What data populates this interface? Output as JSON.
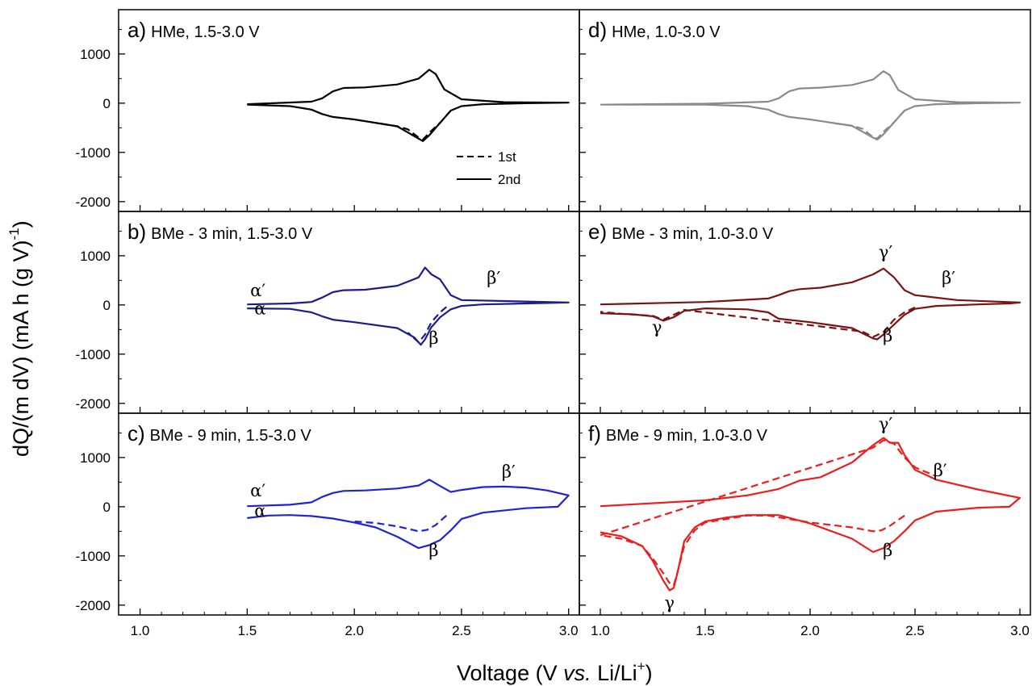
{
  "figure": {
    "xlabel_parts": [
      "Voltage (V ",
      "vs.",
      " Li/Li",
      "+",
      ")"
    ],
    "ylabel_parts": [
      "dQ/(m dV) (mA h (g V)",
      "-1",
      ")"
    ],
    "yticks": [
      "1000",
      "0",
      "-1000",
      "-2000"
    ],
    "xticks": [
      "1.0",
      "1.5",
      "2.0",
      "2.5",
      "3.0"
    ],
    "legend": {
      "first": "1st",
      "second": "2nd"
    }
  },
  "panels": [
    {
      "letter": "a)",
      "label": "HMe, 1.5-3.0 V"
    },
    {
      "letter": "b)",
      "label": "BMe - 3 min, 1.5-3.0 V"
    },
    {
      "letter": "c)",
      "label": "BMe - 9 min, 1.5-3.0 V"
    },
    {
      "letter": "d)",
      "label": "HMe, 1.0-3.0 V"
    },
    {
      "letter": "e)",
      "label": "BMe - 3 min, 1.0-3.0 V"
    },
    {
      "letter": "f)",
      "label": "BMe - 9 min, 1.0-3.0 V"
    }
  ],
  "chart_data": [
    {
      "type": "line",
      "panel": "a",
      "title": "HMe, 1.5-3.0 V",
      "color": "#000000",
      "xlim": [
        0.9,
        3.05
      ],
      "ylim": [
        -2200,
        1900
      ],
      "series": [
        {
          "name": "2nd",
          "style": "solid",
          "x": [
            1.5,
            1.8,
            1.85,
            1.9,
            1.95,
            2.05,
            2.2,
            2.3,
            2.35,
            2.38,
            2.42,
            2.5,
            2.7,
            3.0,
            2.8,
            2.6,
            2.5,
            2.45,
            2.4,
            2.35,
            2.32,
            2.3,
            2.2,
            2.0,
            1.9,
            1.85,
            1.8,
            1.7,
            1.5
          ],
          "y": [
            -20,
            30,
            100,
            240,
            310,
            320,
            380,
            500,
            680,
            590,
            280,
            80,
            20,
            10,
            0,
            -20,
            -60,
            -150,
            -400,
            -650,
            -770,
            -720,
            -470,
            -330,
            -280,
            -220,
            -130,
            -60,
            -30
          ]
        },
        {
          "name": "1st",
          "style": "dashed",
          "x": [
            2.45,
            2.4,
            2.35,
            2.32,
            2.3,
            2.25,
            2.2,
            2.1
          ],
          "y": [
            -150,
            -400,
            -600,
            -740,
            -700,
            -530,
            -470,
            -400
          ]
        }
      ]
    },
    {
      "type": "line",
      "panel": "b",
      "title": "BMe - 3 min, 1.5-3.0 V",
      "color": "#1c1c8c",
      "xlim": [
        0.9,
        3.05
      ],
      "ylim": [
        -2200,
        1900
      ],
      "annotations": [
        {
          "text": "α′",
          "x": 1.55,
          "y": 180
        },
        {
          "text": "α",
          "x": 1.56,
          "y": -190
        },
        {
          "text": "β′",
          "x": 2.65,
          "y": 430
        },
        {
          "text": "β",
          "x": 2.37,
          "y": -790
        }
      ],
      "series": [
        {
          "name": "2nd",
          "style": "solid",
          "x": [
            1.5,
            1.7,
            1.8,
            1.85,
            1.9,
            1.95,
            2.05,
            2.2,
            2.3,
            2.33,
            2.36,
            2.4,
            2.45,
            2.5,
            2.7,
            3.0,
            2.8,
            2.6,
            2.5,
            2.45,
            2.4,
            2.36,
            2.33,
            2.31,
            2.28,
            2.2,
            2.0,
            1.9,
            1.85,
            1.8,
            1.7,
            1.5
          ],
          "y": [
            10,
            30,
            60,
            150,
            260,
            300,
            310,
            390,
            560,
            760,
            620,
            520,
            200,
            100,
            80,
            50,
            30,
            10,
            -20,
            -90,
            -250,
            -450,
            -700,
            -810,
            -660,
            -470,
            -350,
            -300,
            -230,
            -150,
            -80,
            -70
          ]
        },
        {
          "name": "1st",
          "style": "dashed",
          "x": [
            2.43,
            2.4,
            2.36,
            2.33,
            2.3,
            2.25
          ],
          "y": [
            -40,
            -150,
            -350,
            -600,
            -760,
            -560
          ]
        }
      ]
    },
    {
      "type": "line",
      "panel": "c",
      "title": "BMe - 9 min, 1.5-3.0 V",
      "color": "#1f23d6",
      "xlim": [
        0.9,
        3.05
      ],
      "ylim": [
        -2200,
        1900
      ],
      "annotations": [
        {
          "text": "α′",
          "x": 1.55,
          "y": 210
        },
        {
          "text": "α",
          "x": 1.56,
          "y": -200
        },
        {
          "text": "β′",
          "x": 2.72,
          "y": 600
        },
        {
          "text": "β",
          "x": 2.37,
          "y": -1000
        }
      ],
      "series": [
        {
          "name": "2nd",
          "style": "solid",
          "x": [
            1.5,
            1.7,
            1.8,
            1.85,
            1.9,
            1.95,
            2.05,
            2.2,
            2.3,
            2.35,
            2.4,
            2.45,
            2.5,
            2.6,
            2.7,
            2.8,
            2.9,
            3.0,
            2.95,
            2.8,
            2.6,
            2.5,
            2.45,
            2.4,
            2.35,
            2.3,
            2.2,
            2.1,
            2.0,
            1.9,
            1.8,
            1.7,
            1.6,
            1.5
          ],
          "y": [
            10,
            40,
            90,
            200,
            280,
            320,
            330,
            370,
            430,
            550,
            420,
            300,
            340,
            400,
            410,
            390,
            330,
            230,
            0,
            -30,
            -120,
            -250,
            -480,
            -680,
            -780,
            -840,
            -610,
            -420,
            -320,
            -240,
            -190,
            -170,
            -180,
            -230
          ]
        },
        {
          "name": "1st",
          "style": "dashed",
          "x": [
            2.43,
            2.38,
            2.34,
            2.3,
            2.2,
            2.1,
            2.0
          ],
          "y": [
            -180,
            -370,
            -470,
            -500,
            -400,
            -330,
            -300
          ]
        }
      ]
    },
    {
      "type": "line",
      "panel": "d",
      "title": "HMe, 1.0-3.0 V",
      "color": "#8a8a8a",
      "xlim": [
        0.9,
        3.05
      ],
      "ylim": [
        -2200,
        1900
      ],
      "series": [
        {
          "name": "2nd",
          "style": "solid",
          "x": [
            1.0,
            1.5,
            1.8,
            1.85,
            1.9,
            1.95,
            2.05,
            2.2,
            2.3,
            2.35,
            2.38,
            2.42,
            2.5,
            2.7,
            3.0,
            2.8,
            2.6,
            2.5,
            2.45,
            2.4,
            2.35,
            2.32,
            2.3,
            2.2,
            2.0,
            1.9,
            1.85,
            1.8,
            1.7,
            1.5,
            1.0
          ],
          "y": [
            -30,
            -10,
            30,
            100,
            240,
            300,
            315,
            370,
            480,
            650,
            570,
            270,
            80,
            20,
            10,
            0,
            -20,
            -60,
            -150,
            -390,
            -630,
            -740,
            -700,
            -460,
            -330,
            -280,
            -220,
            -130,
            -60,
            -30,
            -30
          ]
        },
        {
          "name": "1st",
          "style": "dashed",
          "x": [
            2.45,
            2.4,
            2.35,
            2.32,
            2.3,
            2.25,
            2.2,
            2.1
          ],
          "y": [
            -150,
            -390,
            -580,
            -720,
            -690,
            -520,
            -460,
            -400
          ]
        }
      ]
    },
    {
      "type": "line",
      "panel": "e",
      "title": "BMe - 3 min, 1.0-3.0 V",
      "color": "#7a1414",
      "xlim": [
        0.9,
        3.05
      ],
      "ylim": [
        -2200,
        1900
      ],
      "annotations": [
        {
          "text": "γ′",
          "x": 2.36,
          "y": 960
        },
        {
          "text": "β′",
          "x": 2.66,
          "y": 430
        },
        {
          "text": "γ",
          "x": 1.27,
          "y": -570
        },
        {
          "text": "β",
          "x": 2.37,
          "y": -740
        }
      ],
      "series": [
        {
          "name": "2nd",
          "style": "solid",
          "x": [
            1.0,
            1.5,
            1.8,
            1.85,
            1.9,
            1.95,
            2.05,
            2.2,
            2.3,
            2.35,
            2.4,
            2.45,
            2.5,
            2.7,
            3.0,
            2.95,
            2.8,
            2.6,
            2.5,
            2.45,
            2.4,
            2.35,
            2.32,
            2.3,
            2.2,
            2.0,
            1.85,
            1.8,
            1.7,
            1.5,
            1.4,
            1.35,
            1.3,
            1.25,
            1.15,
            1.0
          ],
          "y": [
            10,
            60,
            130,
            200,
            280,
            320,
            350,
            460,
            620,
            740,
            560,
            300,
            200,
            100,
            50,
            30,
            10,
            -20,
            -80,
            -200,
            -400,
            -600,
            -700,
            -680,
            -470,
            -350,
            -280,
            -150,
            -90,
            -70,
            -120,
            -250,
            -320,
            -230,
            -190,
            -170
          ]
        },
        {
          "name": "1st",
          "style": "dashed",
          "x": [
            2.5,
            2.45,
            2.4,
            2.35,
            2.3,
            2.25,
            1.4,
            1.35,
            1.3,
            1.25,
            1.1,
            1.0
          ],
          "y": [
            -50,
            -150,
            -300,
            -550,
            -650,
            -540,
            -100,
            -200,
            -300,
            -220,
            -180,
            -140
          ]
        }
      ]
    },
    {
      "type": "line",
      "panel": "f",
      "title": "BMe - 9 min, 1.0-3.0 V",
      "color": "#ee1c1c",
      "xlim": [
        0.9,
        3.05
      ],
      "ylim": [
        -2200,
        1900
      ],
      "annotations": [
        {
          "text": "γ′",
          "x": 2.36,
          "y": 1560
        },
        {
          "text": "β′",
          "x": 2.62,
          "y": 620
        },
        {
          "text": "γ",
          "x": 1.33,
          "y": -2070
        },
        {
          "text": "β",
          "x": 2.37,
          "y": -1000
        }
      ],
      "series": [
        {
          "name": "2nd",
          "style": "solid",
          "x": [
            1.0,
            1.5,
            1.7,
            1.85,
            1.95,
            2.05,
            2.2,
            2.3,
            2.35,
            2.38,
            2.42,
            2.45,
            2.5,
            2.6,
            2.8,
            3.0,
            2.95,
            2.8,
            2.6,
            2.5,
            2.45,
            2.4,
            2.35,
            2.3,
            2.2,
            2.0,
            1.85,
            1.7,
            1.6,
            1.5,
            1.45,
            1.4,
            1.37,
            1.35,
            1.33,
            1.3,
            1.25,
            1.2,
            1.1,
            1.0
          ],
          "y": [
            10,
            130,
            230,
            360,
            530,
            600,
            900,
            1250,
            1400,
            1300,
            1300,
            1050,
            750,
            550,
            350,
            180,
            0,
            -20,
            -100,
            -280,
            -500,
            -700,
            -840,
            -920,
            -650,
            -340,
            -170,
            -170,
            -220,
            -300,
            -420,
            -700,
            -1300,
            -1650,
            -1700,
            -1500,
            -1100,
            -800,
            -600,
            -520
          ]
        },
        {
          "name": "1st",
          "style": "dashed",
          "x": [
            2.45,
            2.38,
            2.34,
            2.3,
            2.2,
            2.0,
            1.8,
            1.7,
            1.5,
            1.45,
            1.4,
            1.37,
            1.35,
            1.33,
            1.3,
            1.25,
            1.2,
            1.1,
            1.0,
            2.3,
            2.35,
            2.4,
            2.45,
            2.5,
            2.6
          ],
          "y": [
            -180,
            -390,
            -480,
            -500,
            -420,
            -320,
            -180,
            -180,
            -320,
            -480,
            -800,
            -1300,
            -1600,
            -1550,
            -1350,
            -1050,
            -800,
            -650,
            -580,
            1200,
            1350,
            1280,
            1000,
            800,
            620
          ]
        }
      ]
    }
  ]
}
